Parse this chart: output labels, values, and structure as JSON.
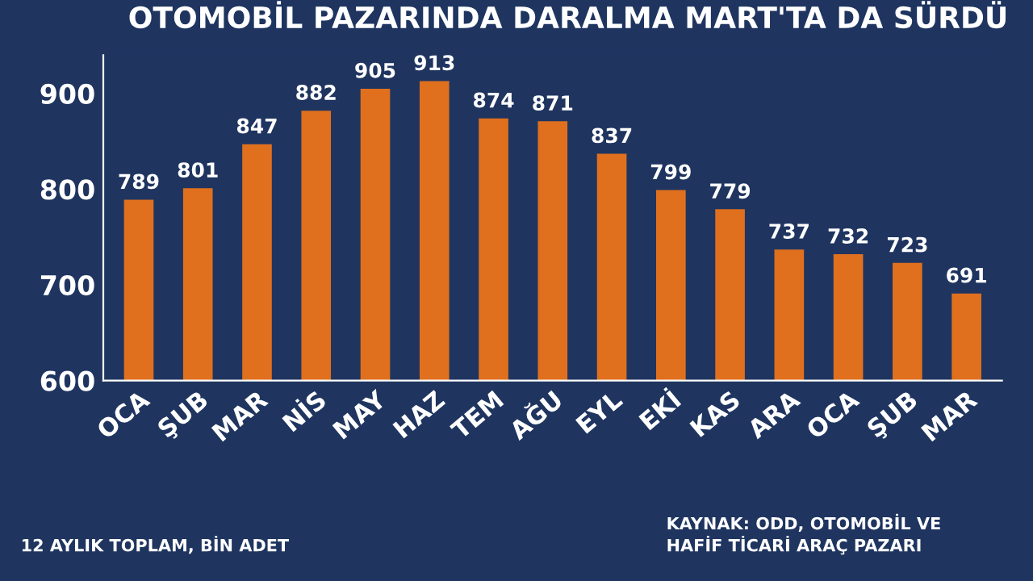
{
  "chart_data": {
    "type": "bar",
    "title": "OTOMOBİL PAZARINDA DARALMA MART'TA DA SÜRDÜ",
    "categories": [
      "OCA",
      "ŞUB",
      "MAR",
      "NİS",
      "MAY",
      "HAZ",
      "TEM",
      "AĞU",
      "EYL",
      "EKİ",
      "KAS",
      "ARA",
      "OCA",
      "ŞUB",
      "MAR"
    ],
    "values": [
      789,
      801,
      847,
      882,
      905,
      913,
      874,
      871,
      837,
      799,
      779,
      737,
      732,
      723,
      691
    ],
    "color": "#e0701e",
    "data_labels": true,
    "ylim": [
      600,
      940
    ],
    "yticks": [
      600,
      700,
      800,
      900
    ],
    "grid": false,
    "annotations": [
      "12 AYLIK TOPLAM, BİN ADET",
      "KAYNAK: ODD, OTOMOBİL VE\nHAFİF TİCARİ ARAÇ PAZARI"
    ]
  }
}
